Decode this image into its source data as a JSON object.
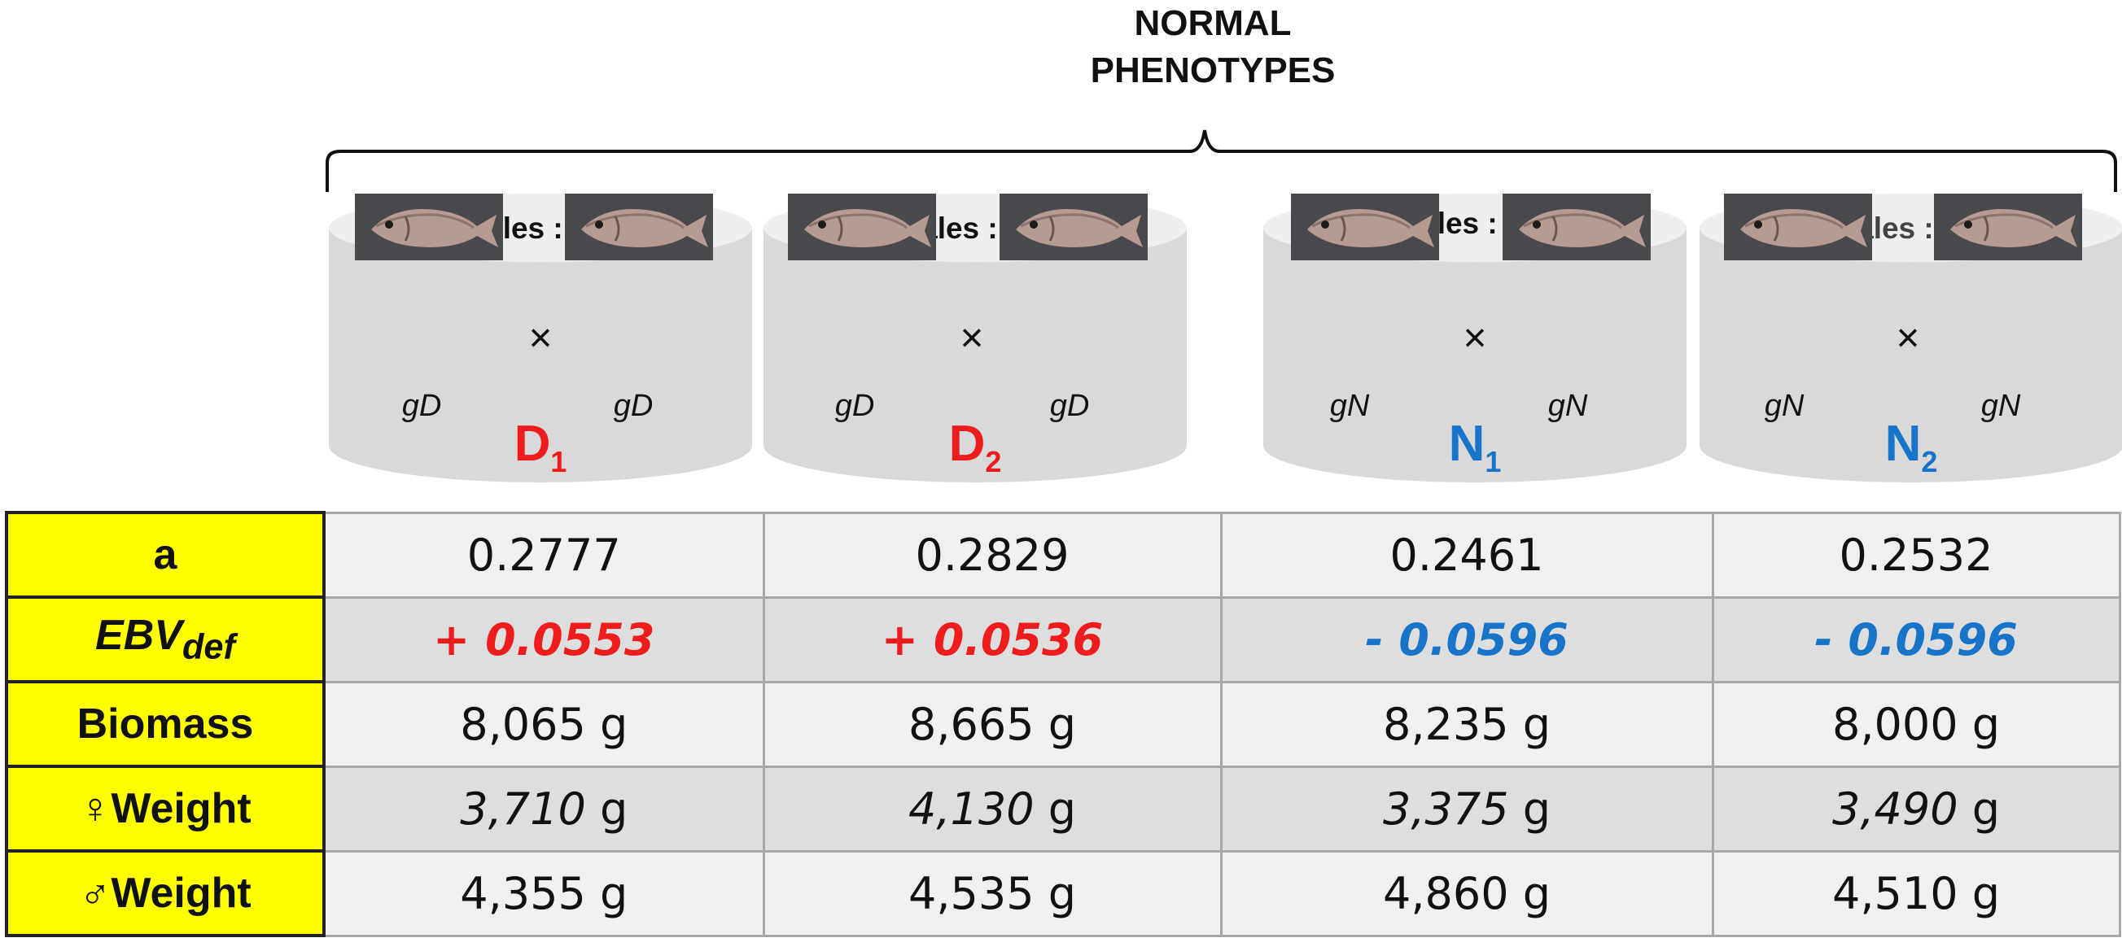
{
  "heading": {
    "line1": "NORMAL",
    "line2": "PHENOTYPES"
  },
  "colors": {
    "deformed": "#ee1c1c",
    "normal": "#1874c8",
    "label_bg": "#ffff00",
    "tank": "#d9d9d9"
  },
  "tanks": [
    {
      "label": "3 Females : 3 males",
      "cross": "×",
      "geno_left": "gD",
      "geno_right": "gD",
      "family": "D",
      "family_sub": "1",
      "group": "deformed"
    },
    {
      "label": "3 Females : 3 males",
      "cross": "×",
      "geno_left": "gD",
      "geno_right": "gD",
      "family": "D",
      "family_sub": "2",
      "group": "deformed"
    },
    {
      "label": "4 Females : 6 males",
      "cross": "×",
      "geno_left": "gN",
      "geno_right": "gN",
      "family": "N",
      "family_sub": "1",
      "group": "normal"
    },
    {
      "label": "4 Females : 6 males",
      "cross": "×",
      "geno_left": "gN",
      "geno_right": "gN",
      "family": "N",
      "family_sub": "2",
      "group": "normal"
    }
  ],
  "table": {
    "rows": [
      {
        "label": "a",
        "values": [
          "0.2777",
          "0.2829",
          "0.2461",
          "0.2532"
        ]
      },
      {
        "label_main": "EBV",
        "label_sub": "def",
        "values": [
          "+ 0.0553",
          "+ 0.0536",
          "- 0.0596",
          "- 0.0596"
        ]
      },
      {
        "label": "Biomass",
        "values": [
          "8,065 g",
          "8,665 g",
          "8,235 g",
          "8,000 g"
        ]
      },
      {
        "label": "♀Weight",
        "values": [
          "3,710",
          "4,130",
          "3,375",
          "3,490"
        ],
        "unit": "g"
      },
      {
        "label": "♂Weight",
        "values": [
          "4,355 g",
          "4,535 g",
          "4,860 g",
          "4,510 g"
        ]
      }
    ]
  }
}
